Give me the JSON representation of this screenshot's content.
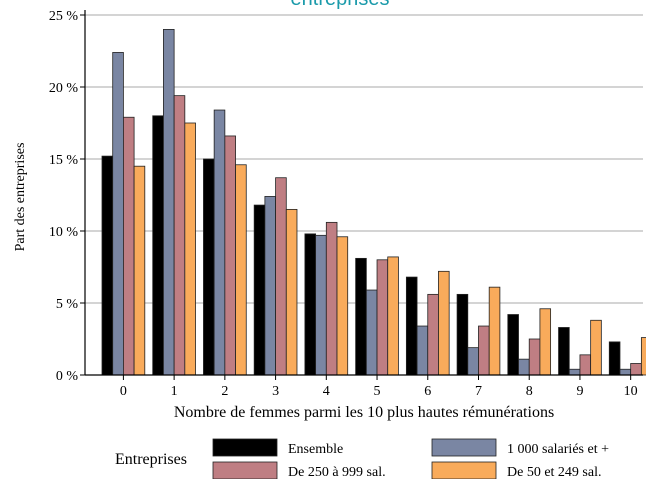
{
  "chart_data": {
    "type": "bar",
    "title": "entreprises",
    "xlabel": "Nombre de femmes parmi les 10 plus hautes rémunérations",
    "ylabel": "Part des entreprises",
    "categories": [
      "0",
      "1",
      "2",
      "3",
      "4",
      "5",
      "6",
      "7",
      "8",
      "9",
      "10"
    ],
    "ylim": [
      0,
      25
    ],
    "yticks": [
      0,
      5,
      10,
      15,
      20,
      25
    ],
    "ytick_labels": [
      "0 %",
      "5 %",
      "10 %",
      "15 %",
      "20 %",
      "25 %"
    ],
    "grid": "horizontal",
    "legend_title": "Entreprises",
    "legend_position": "bottom",
    "series": [
      {
        "name": "Ensemble",
        "color": "#000000",
        "values": [
          15.2,
          18.0,
          15.0,
          11.8,
          9.8,
          8.1,
          6.8,
          5.6,
          4.2,
          3.3,
          2.3
        ]
      },
      {
        "name": "1 000 salariés et +",
        "color": "#7a86a3",
        "values": [
          22.4,
          24.0,
          18.4,
          12.4,
          9.7,
          5.9,
          3.4,
          1.9,
          1.1,
          0.4,
          0.4
        ]
      },
      {
        "name": "De 250 à 999 sal.",
        "color": "#bf7e83",
        "values": [
          17.9,
          19.4,
          16.6,
          13.7,
          10.6,
          8.0,
          5.6,
          3.4,
          2.5,
          1.4,
          0.8
        ]
      },
      {
        "name": "De 50 et 249 sal.",
        "color": "#f9ab5b",
        "values": [
          14.5,
          17.5,
          14.6,
          11.5,
          9.6,
          8.2,
          7.2,
          6.1,
          4.6,
          3.8,
          2.6
        ]
      }
    ]
  }
}
